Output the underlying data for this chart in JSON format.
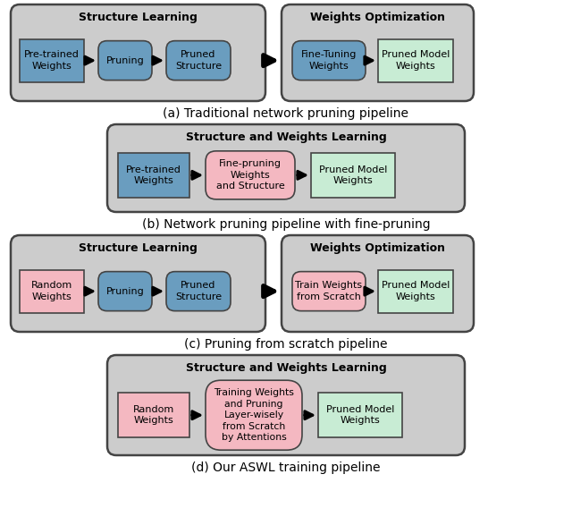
{
  "fig_w": 6.4,
  "fig_h": 5.87,
  "dpi": 100,
  "bg": "#ffffff",
  "panel_bg": "#cccccc",
  "panel_border": "#444444",
  "box_border": "#444444",
  "blue_box": "#6a9dbf",
  "pink_box": "#f4b8c1",
  "green_box": "#c8ecd4",
  "diagrams": [
    {
      "id": "a",
      "label": "(a) Traditional network pruning pipeline",
      "type": "two_panel",
      "left_title": "Structure Learning",
      "right_title": "Weights Optimization",
      "left_boxes": [
        {
          "text": "Pre-trained\nWeights",
          "color": "blue",
          "rounded": false
        },
        {
          "text": "Pruning",
          "color": "blue",
          "rounded": true
        },
        {
          "text": "Pruned\nStructure",
          "color": "blue",
          "rounded": true
        }
      ],
      "right_boxes": [
        {
          "text": "Fine-Tuning\nWeights",
          "color": "blue",
          "rounded": true
        },
        {
          "text": "Pruned Model\nWeights",
          "color": "green",
          "rounded": false
        }
      ]
    },
    {
      "id": "b",
      "label": "(b) Network pruning pipeline with fine-pruning",
      "type": "one_panel",
      "panel_title": "Structure and Weights Learning",
      "boxes": [
        {
          "text": "Pre-trained\nWeights",
          "color": "blue",
          "rounded": false
        },
        {
          "text": "Fine-pruning\nWeights\nand Structure",
          "color": "pink",
          "rounded": true
        },
        {
          "text": "Pruned Model\nWeights",
          "color": "green",
          "rounded": false
        }
      ]
    },
    {
      "id": "c",
      "label": "(c) Pruning from scratch pipeline",
      "type": "two_panel",
      "left_title": "Structure Learning",
      "right_title": "Weights Optimization",
      "left_boxes": [
        {
          "text": "Random\nWeights",
          "color": "pink",
          "rounded": false
        },
        {
          "text": "Pruning",
          "color": "blue",
          "rounded": true
        },
        {
          "text": "Pruned\nStructure",
          "color": "blue",
          "rounded": true
        }
      ],
      "right_boxes": [
        {
          "text": "Train Weights\nfrom Scratch",
          "color": "pink",
          "rounded": true
        },
        {
          "text": "Pruned Model\nWeights",
          "color": "green",
          "rounded": false
        }
      ]
    },
    {
      "id": "d",
      "label": "(d) Our ASWL training pipeline",
      "type": "one_panel",
      "panel_title": "Structure and Weights Learning",
      "boxes": [
        {
          "text": "Random\nWeights",
          "color": "pink",
          "rounded": false
        },
        {
          "text": "Training Weights\nand Pruning\nLayer-wisely\nfrom Scratch\nby Attentions",
          "color": "pink",
          "rounded": true
        },
        {
          "text": "Pruned Model\nWeights",
          "color": "green",
          "rounded": false
        }
      ]
    }
  ]
}
